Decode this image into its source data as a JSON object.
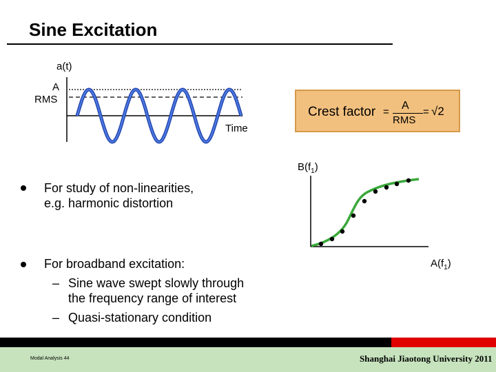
{
  "title": "Sine Excitation",
  "signal": {
    "y_label": "a(t)",
    "amplitude_label": "A",
    "rms_label": "RMS",
    "x_label": "Time"
  },
  "crest": {
    "label": "Crest factor",
    "fraction_numerator": "A",
    "fraction_denominator": "RMS",
    "equals_a": "=",
    "equals_b": "=",
    "value": "√2"
  },
  "graph": {
    "y_label": "B(f",
    "y_sub": "1",
    "y_close": ")",
    "x_label": "A(f",
    "x_sub": "1",
    "x_close": ")"
  },
  "bullets": [
    {
      "lines": [
        "For study of non-linearities,",
        "e.g. harmonic distortion"
      ],
      "subs": []
    },
    {
      "lines": [
        "For broadband excitation:"
      ],
      "subs": [
        {
          "dash": "–",
          "lines": [
            "Sine wave swept slowly through",
            "the frequency range of interest"
          ]
        },
        {
          "dash": "–",
          "lines": [
            "Quasi-stationary condition"
          ]
        }
      ]
    }
  ],
  "footer": {
    "left": "Modal Analysis 44",
    "right": "Shanghai Jiaotong University 2011"
  },
  "colors": {
    "crest_box": "#f2c07e",
    "curve": "#3aa83a",
    "footer_green": "#c6e3bd",
    "footer_red": "#e00000"
  }
}
